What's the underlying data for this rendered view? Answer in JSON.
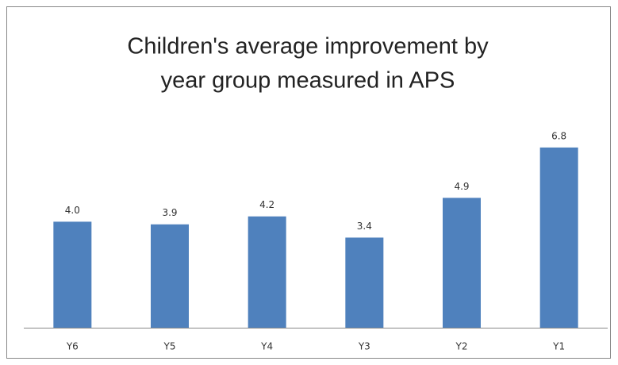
{
  "chart_data": {
    "type": "bar",
    "title": [
      "Children's average improvement  by",
      "year group measured in APS"
    ],
    "categories": [
      "Y6",
      "Y5",
      "Y4",
      "Y3",
      "Y2",
      "Y1"
    ],
    "values": [
      4.0,
      3.9,
      4.2,
      3.4,
      4.9,
      6.8
    ],
    "value_labels": [
      "4.0",
      "3.9",
      "4.2",
      "3.4",
      "4.9",
      "6.8"
    ],
    "color": "#4f81bd"
  }
}
